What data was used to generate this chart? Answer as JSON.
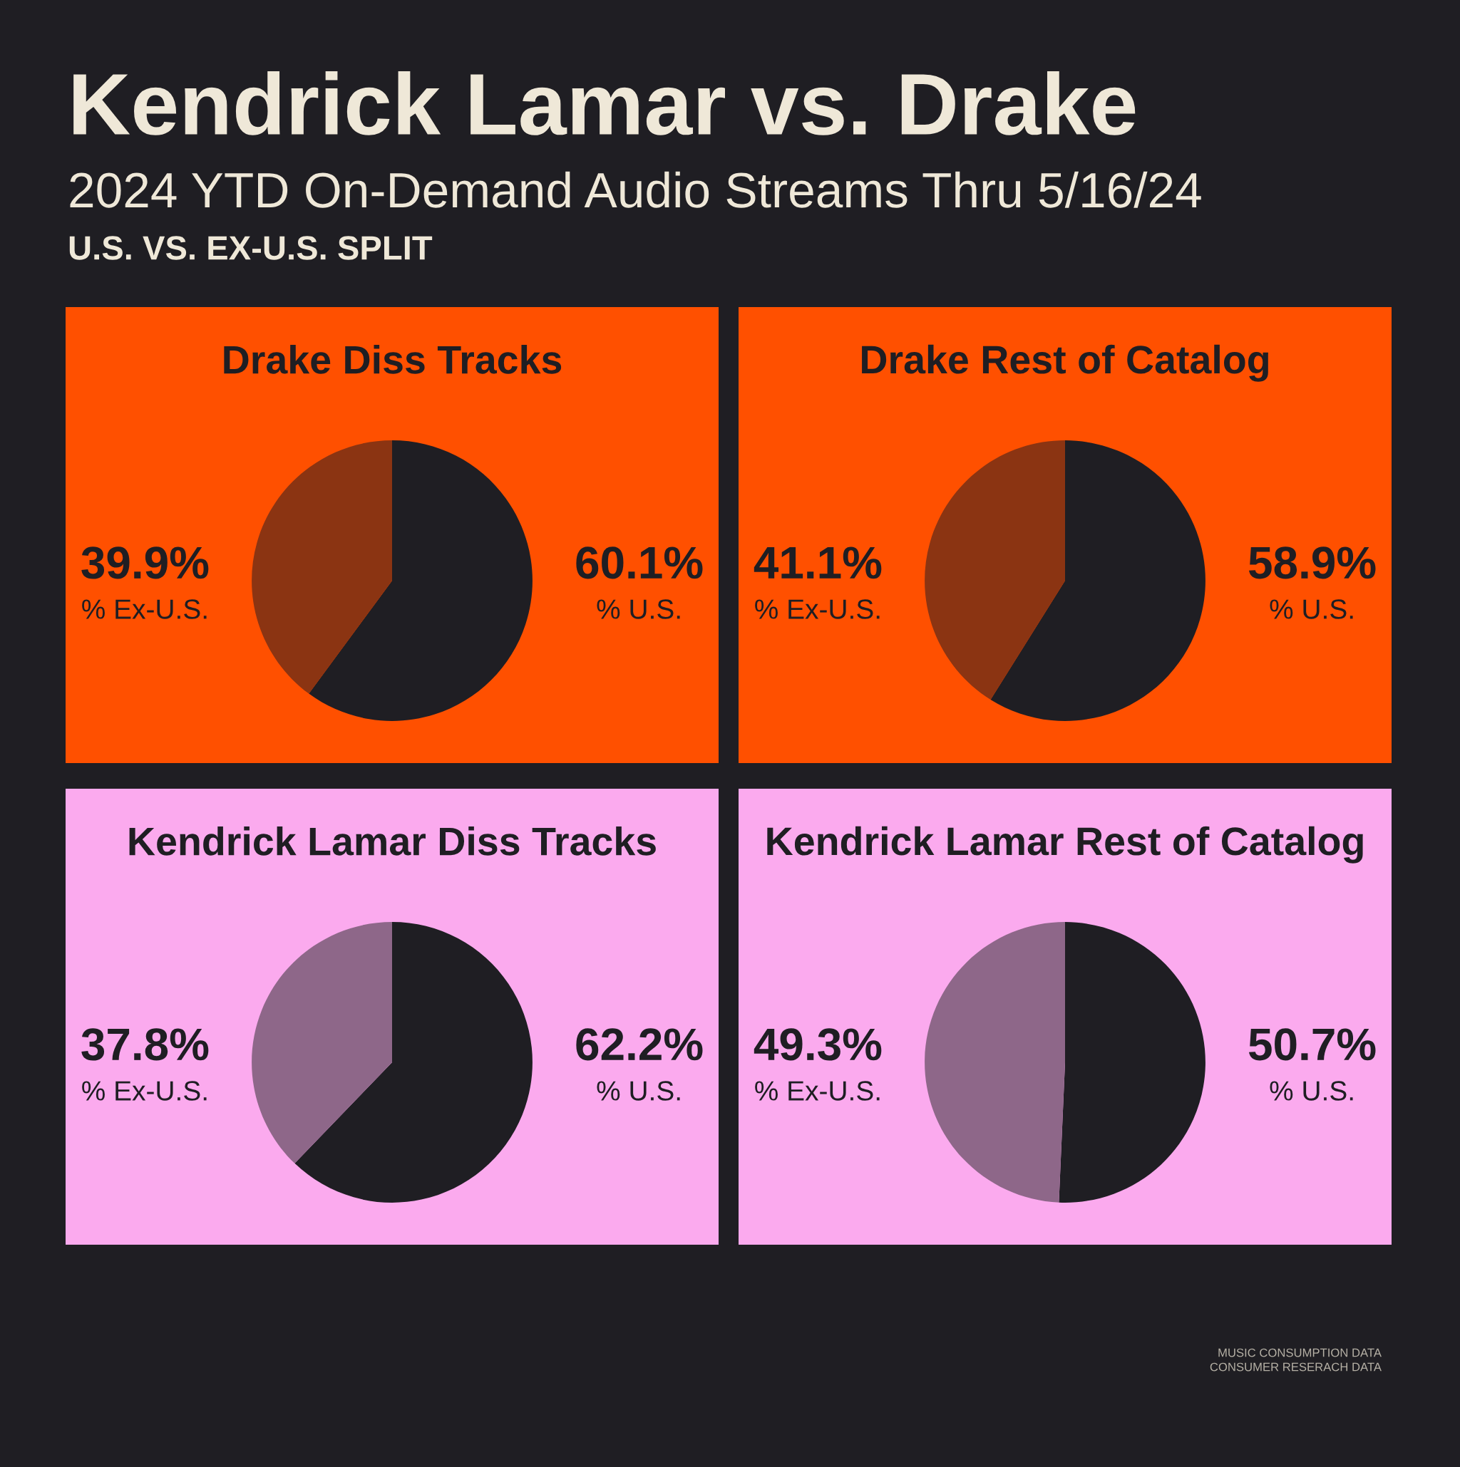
{
  "chart_data": [
    {
      "type": "other",
      "title": "Kendrick Lamar vs. Drake",
      "subtitle": "2024 YTD On-Demand Audio Streams Thru 5/16/24",
      "annotations": [
        "U.S. VS. EX-U.S. SPLIT",
        "MUSIC CONSUMPTION DATA",
        "CONSUMER RESERACH DATA"
      ]
    },
    {
      "type": "pie",
      "title": "Drake Diss Tracks",
      "categories": [
        "% U.S.",
        "% Ex-U.S."
      ],
      "values": [
        60.1,
        39.9
      ],
      "colors": [
        "#1f1e23",
        "#8b3412"
      ],
      "value_labels": [
        "60.1%",
        "39.9%"
      ]
    },
    {
      "type": "pie",
      "title": "Drake Rest of Catalog",
      "categories": [
        "% U.S.",
        "% Ex-U.S."
      ],
      "values": [
        58.9,
        41.1
      ],
      "colors": [
        "#1f1e23",
        "#8b3412"
      ],
      "value_labels": [
        "58.9%",
        "41.1%"
      ]
    },
    {
      "type": "pie",
      "title": "Kendrick Lamar Diss Tracks",
      "categories": [
        "% U.S.",
        "% Ex-U.S."
      ],
      "values": [
        62.2,
        37.8
      ],
      "colors": [
        "#1f1e23",
        "#8e6789"
      ],
      "value_labels": [
        "62.2%",
        "37.8%"
      ]
    },
    {
      "type": "pie",
      "title": "Kendrick Lamar Rest of Catalog",
      "categories": [
        "% U.S.",
        "% Ex-U.S."
      ],
      "values": [
        50.7,
        49.3
      ],
      "colors": [
        "#1f1e23",
        "#8e6789"
      ],
      "value_labels": [
        "50.7%",
        "49.3%"
      ]
    }
  ]
}
